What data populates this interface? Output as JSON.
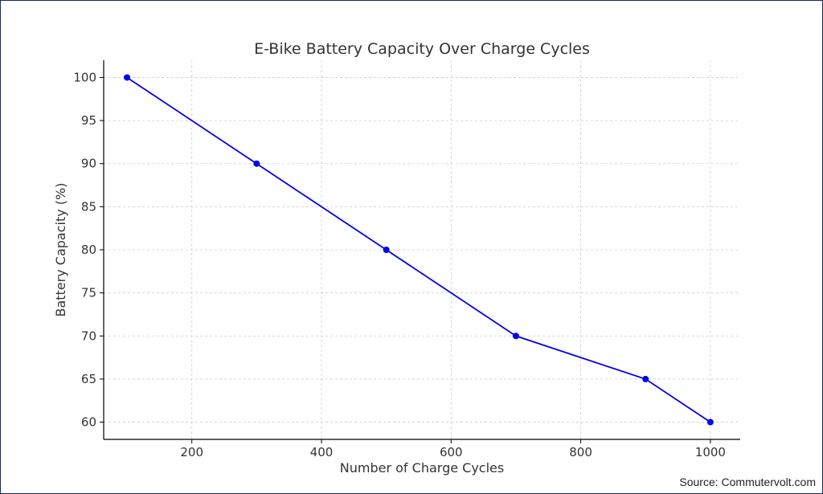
{
  "chart_data": {
    "type": "line",
    "title": "E-Bike Battery Capacity Over Charge Cycles",
    "xlabel": "Number of Charge Cycles",
    "ylabel": "Battery Capacity (%)",
    "x": [
      100,
      300,
      500,
      700,
      900,
      1000
    ],
    "series": [
      {
        "values": [
          100,
          90,
          80,
          70,
          65,
          60
        ],
        "color": "#0000ee"
      }
    ],
    "xlim": [
      64,
      1046
    ],
    "ylim": [
      58,
      102
    ],
    "xticks": [
      200,
      400,
      600,
      800,
      1000
    ],
    "yticks": [
      60,
      65,
      70,
      75,
      80,
      85,
      90,
      95,
      100
    ],
    "grid": true,
    "marker": "circle"
  },
  "source": "Source: Commutervolt.com"
}
